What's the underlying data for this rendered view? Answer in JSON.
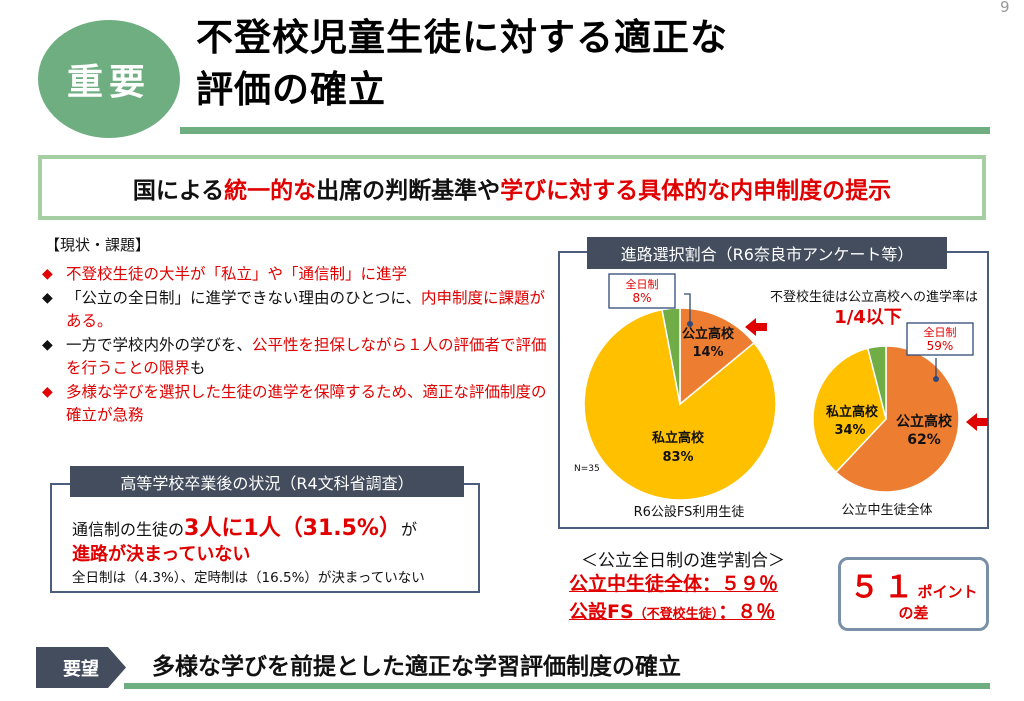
{
  "page_number": "9",
  "header": {
    "badge": "重要",
    "title_line1": "不登校児童生徒に対する適正な",
    "title_line2": "評価の確立"
  },
  "banner": {
    "part1": "国による",
    "part2": "統一的な",
    "part3": "出席の判断基準や",
    "part4": "学びに対する具体的な内申制度の提示"
  },
  "current_issues": {
    "label": "【現状・課題】",
    "b1": "不登校生徒の大半が「私立」や「通信制」に進学",
    "b2_a": "「公立の全日制」に進学できない理由のひとつに、",
    "b2_b": "内申制度に課題がある。",
    "b3_a": "一方で学校内外の学びを、",
    "b3_b": "公平性を担保しながら１人の評価者で評価を行うことの限界",
    "b3_c": "も",
    "b4": "多様な学びを選択した生徒の進学を保障するため、適正な評価制度の確立が急務"
  },
  "post_grad": {
    "heading": "高等学校卒業後の状況（R4文科省調査）",
    "line1_a": "通信制の生徒の",
    "line1_b": "3人に1人（31.5%）",
    "line1_c": "が",
    "line2": "進路が決まっていない",
    "line3": "全日制は（4.3%）、定時制は（16.5%）が決まっていない"
  },
  "chart_panel": {
    "heading": "進路選択割合（R6奈良市アンケート等）",
    "note_line1": "不登校生徒は公立高校への進学率は",
    "note_line2": "1/4以下",
    "n_label": "N=35"
  },
  "chart_data": [
    {
      "type": "pie",
      "title": "R6公設FS利用生徒",
      "slices": [
        {
          "label": "公立高校",
          "value": 14,
          "color": "#ed7d31"
        },
        {
          "label": "私立高校",
          "value": 83,
          "color": "#ffc000"
        },
        {
          "label": "全日制",
          "value": 8,
          "color": "#70ad47"
        }
      ],
      "labels": {
        "public": "公立高校",
        "public_pct": "14%",
        "private": "私立高校",
        "private_pct": "83%",
        "fulltime": "全日制",
        "fulltime_pct": "8%"
      }
    },
    {
      "type": "pie",
      "title": "公立中生徒全体",
      "slices": [
        {
          "label": "公立高校",
          "value": 62,
          "color": "#ed7d31"
        },
        {
          "label": "私立高校",
          "value": 34,
          "color": "#ffc000"
        },
        {
          "label": "全日制",
          "value": 59,
          "color": "#70ad47"
        }
      ],
      "labels": {
        "public": "公立高校",
        "public_pct": "62%",
        "private": "私立高校",
        "private_pct": "34%",
        "fulltime": "全日制",
        "fulltime_pct": "59%"
      }
    }
  ],
  "stats": {
    "heading": "＜公立全日制の進学割合＞",
    "line1": "公立中生徒全体：５９％",
    "line2_a": "公設FS",
    "line2_b": "（不登校生徒）",
    "line2_c": "：８％"
  },
  "difference": {
    "number": "５１",
    "unit": "ポイント",
    "suffix": "の差"
  },
  "request": {
    "label": "要望",
    "text": "多様な学びを前提とした適正な学習評価制度の確立"
  },
  "colors": {
    "green": "#6fae80",
    "navy": "#434d5e",
    "red": "#e00000",
    "orange": "#ed7d31",
    "yellow": "#ffc000",
    "pie_green": "#70ad47"
  }
}
